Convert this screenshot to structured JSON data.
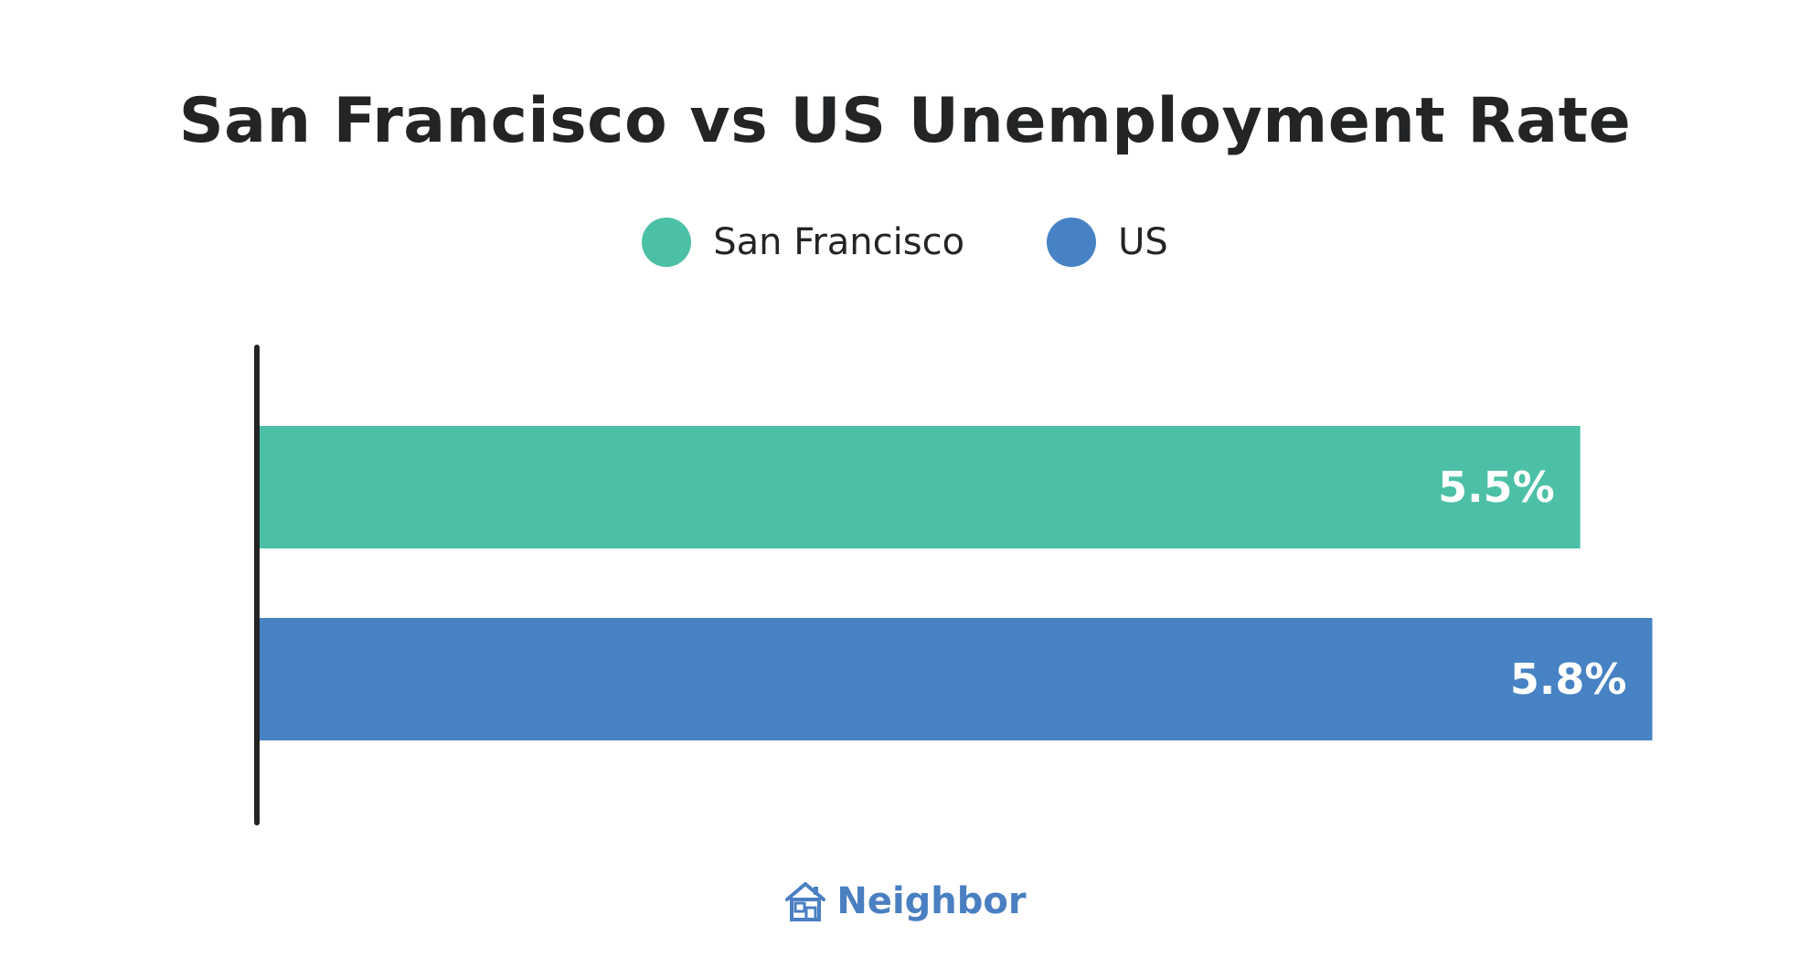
{
  "colors": {
    "title": "#222426",
    "axis": "#222426",
    "brand": "#4a7fc1"
  },
  "chart_data": {
    "type": "bar",
    "orientation": "horizontal",
    "title": "San Francisco vs US Unemployment Rate",
    "xlabel": "",
    "ylabel": "",
    "xlim": [
      0,
      6.0
    ],
    "grid": false,
    "legend_position": "top-center",
    "series": [
      {
        "name": "San Francisco",
        "value": 5.5,
        "label": "5.5%",
        "color": "#4cc0a6"
      },
      {
        "name": "US",
        "value": 5.8,
        "label": "5.8%",
        "color": "#4682c4"
      }
    ]
  },
  "branding": {
    "name": "Neighbor",
    "icon": "house-icon"
  }
}
